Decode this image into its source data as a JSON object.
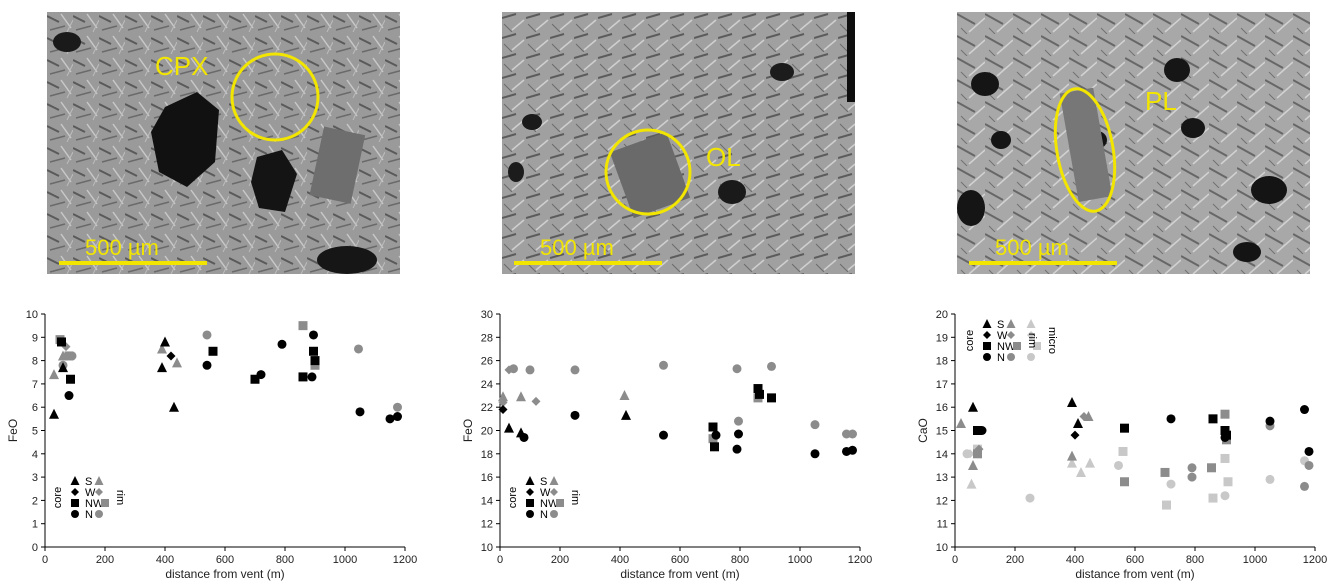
{
  "colors": {
    "core": "#000000",
    "rim": "#8c8c8c",
    "micro": "#c8c8c8",
    "yellow": "#f2e500"
  },
  "micrographs": [
    {
      "mineral_label": "CPX",
      "scale_label": "500 µm"
    },
    {
      "mineral_label": "OL",
      "scale_label": "500 µm"
    },
    {
      "mineral_label": "PL",
      "scale_label": "500 µm"
    }
  ],
  "chart_data": [
    {
      "type": "scatter",
      "xlabel": "distance from vent (m)",
      "ylabel": "FeO",
      "xlim": [
        0,
        1200
      ],
      "ylim": [
        0,
        10
      ],
      "xticks": [
        0,
        200,
        400,
        600,
        800,
        1000,
        1200
      ],
      "yticks": [
        0,
        1,
        2,
        3,
        4,
        5,
        6,
        7,
        8,
        9,
        10
      ],
      "legend": {
        "position": "bottom-left",
        "groups": [
          "core",
          "rim"
        ],
        "sites": [
          "S",
          "W",
          "NW",
          "N"
        ]
      },
      "series": [
        {
          "name": "S",
          "group": "core",
          "marker": "triangle",
          "points": [
            [
              30,
              5.7
            ],
            [
              60,
              7.7
            ],
            [
              390,
              7.7
            ],
            [
              430,
              6.0
            ],
            [
              400,
              8.8
            ]
          ]
        },
        {
          "name": "W",
          "group": "core",
          "marker": "diamond",
          "points": [
            [
              420,
              8.2
            ]
          ]
        },
        {
          "name": "NW",
          "group": "core",
          "marker": "square",
          "points": [
            [
              55,
              8.8
            ],
            [
              85,
              7.2
            ],
            [
              560,
              8.4
            ],
            [
              700,
              7.2
            ],
            [
              860,
              7.3
            ],
            [
              895,
              8.4
            ],
            [
              900,
              8.0
            ]
          ]
        },
        {
          "name": "N",
          "group": "core",
          "marker": "circle",
          "points": [
            [
              80,
              6.5
            ],
            [
              540,
              7.8
            ],
            [
              720,
              7.4
            ],
            [
              790,
              8.7
            ],
            [
              895,
              9.1
            ],
            [
              890,
              7.3
            ],
            [
              1050,
              5.8
            ],
            [
              1150,
              5.5
            ],
            [
              1175,
              5.6
            ]
          ]
        },
        {
          "name": "S",
          "group": "rim",
          "marker": "triangle",
          "points": [
            [
              30,
              7.4
            ],
            [
              60,
              8.2
            ],
            [
              390,
              8.5
            ],
            [
              440,
              7.9
            ]
          ]
        },
        {
          "name": "W",
          "group": "rim",
          "marker": "diamond",
          "points": [
            [
              70,
              8.6
            ]
          ]
        },
        {
          "name": "NW",
          "group": "rim",
          "marker": "square",
          "points": [
            [
              50,
              8.9
            ],
            [
              80,
              8.2
            ],
            [
              860,
              9.5
            ],
            [
              900,
              7.8
            ]
          ]
        },
        {
          "name": "N",
          "group": "rim",
          "marker": "circle",
          "points": [
            [
              60,
              7.8
            ],
            [
              90,
              8.2
            ],
            [
              540,
              9.1
            ],
            [
              900,
              8.0
            ],
            [
              1045,
              8.5
            ],
            [
              1175,
              6.0
            ]
          ]
        }
      ]
    },
    {
      "type": "scatter",
      "xlabel": "distance from vent (m)",
      "ylabel": "FeO",
      "xlim": [
        0,
        1200
      ],
      "ylim": [
        10,
        30
      ],
      "xticks": [
        0,
        200,
        400,
        600,
        800,
        1000,
        1200
      ],
      "yticks": [
        10,
        12,
        14,
        16,
        18,
        20,
        22,
        24,
        26,
        28,
        30
      ],
      "legend": {
        "position": "bottom-left",
        "groups": [
          "core",
          "rim"
        ],
        "sites": [
          "S",
          "W",
          "NW",
          "N"
        ]
      },
      "series": [
        {
          "name": "S",
          "group": "core",
          "marker": "triangle",
          "points": [
            [
              30,
              20.2
            ],
            [
              70,
              19.8
            ],
            [
              420,
              21.3
            ]
          ]
        },
        {
          "name": "W",
          "group": "core",
          "marker": "diamond",
          "points": [
            [
              10,
              21.8
            ]
          ]
        },
        {
          "name": "NW",
          "group": "core",
          "marker": "square",
          "points": [
            [
              710,
              20.3
            ],
            [
              715,
              18.6
            ],
            [
              860,
              23.6
            ],
            [
              865,
              23.1
            ],
            [
              905,
              22.8
            ]
          ]
        },
        {
          "name": "N",
          "group": "core",
          "marker": "circle",
          "points": [
            [
              80,
              19.4
            ],
            [
              250,
              21.3
            ],
            [
              545,
              19.6
            ],
            [
              720,
              19.6
            ],
            [
              795,
              19.7
            ],
            [
              790,
              18.4
            ],
            [
              1050,
              18.0
            ],
            [
              1155,
              18.2
            ],
            [
              1175,
              18.3
            ]
          ]
        },
        {
          "name": "S",
          "group": "rim",
          "marker": "triangle",
          "points": [
            [
              10,
              22.9
            ],
            [
              70,
              22.9
            ],
            [
              415,
              23.0
            ]
          ]
        },
        {
          "name": "W",
          "group": "rim",
          "marker": "diamond",
          "points": [
            [
              10,
              22.4
            ],
            [
              30,
              25.2
            ],
            [
              120,
              22.5
            ]
          ]
        },
        {
          "name": "NW",
          "group": "rim",
          "marker": "square",
          "points": [
            [
              710,
              19.3
            ],
            [
              860,
              22.8
            ]
          ]
        },
        {
          "name": "N",
          "group": "rim",
          "marker": "circle",
          "points": [
            [
              45,
              25.3
            ],
            [
              100,
              25.2
            ],
            [
              250,
              25.2
            ],
            [
              545,
              25.6
            ],
            [
              790,
              25.3
            ],
            [
              795,
              20.8
            ],
            [
              905,
              25.5
            ],
            [
              1050,
              20.5
            ],
            [
              1155,
              19.7
            ],
            [
              1175,
              19.7
            ]
          ]
        }
      ]
    },
    {
      "type": "scatter",
      "xlabel": "distance from vent (m)",
      "ylabel": "CaO",
      "xlim": [
        0,
        1200
      ],
      "ylim": [
        10,
        20
      ],
      "xticks": [
        0,
        200,
        400,
        600,
        800,
        1000,
        1200
      ],
      "yticks": [
        10,
        11,
        12,
        13,
        14,
        15,
        16,
        17,
        18,
        19,
        20
      ],
      "legend": {
        "position": "top-left",
        "groups": [
          "core",
          "rim",
          "micro"
        ],
        "sites": [
          "S",
          "W",
          "NW",
          "N"
        ]
      },
      "series": [
        {
          "name": "S",
          "group": "core",
          "marker": "triangle",
          "points": [
            [
              60,
              16.0
            ],
            [
              390,
              16.2
            ],
            [
              410,
              15.3
            ]
          ]
        },
        {
          "name": "W",
          "group": "core",
          "marker": "diamond",
          "points": [
            [
              400,
              14.8
            ]
          ]
        },
        {
          "name": "NW",
          "group": "core",
          "marker": "square",
          "points": [
            [
              75,
              15.0
            ],
            [
              565,
              15.1
            ],
            [
              860,
              15.5
            ],
            [
              900,
              15.0
            ],
            [
              905,
              14.8
            ]
          ]
        },
        {
          "name": "N",
          "group": "core",
          "marker": "circle",
          "points": [
            [
              90,
              15.0
            ],
            [
              720,
              15.5
            ],
            [
              900,
              14.7
            ],
            [
              1050,
              15.4
            ],
            [
              1165,
              15.9
            ],
            [
              1180,
              14.1
            ]
          ]
        },
        {
          "name": "S",
          "group": "rim",
          "marker": "triangle",
          "points": [
            [
              20,
              15.3
            ],
            [
              60,
              13.5
            ],
            [
              390,
              13.9
            ],
            [
              445,
              15.6
            ]
          ]
        },
        {
          "name": "W",
          "group": "rim",
          "marker": "diamond",
          "points": [
            [
              80,
              14.2
            ],
            [
              430,
              15.6
            ]
          ]
        },
        {
          "name": "NW",
          "group": "rim",
          "marker": "square",
          "points": [
            [
              75,
              14.0
            ],
            [
              565,
              12.8
            ],
            [
              700,
              13.2
            ],
            [
              855,
              13.4
            ],
            [
              900,
              15.7
            ],
            [
              905,
              14.6
            ]
          ]
        },
        {
          "name": "N",
          "group": "rim",
          "marker": "circle",
          "points": [
            [
              790,
              13.4
            ],
            [
              790,
              13.0
            ],
            [
              1050,
              15.2
            ],
            [
              1165,
              12.6
            ],
            [
              1180,
              13.5
            ]
          ]
        },
        {
          "name": "S",
          "group": "micro",
          "marker": "triangle",
          "points": [
            [
              55,
              12.7
            ],
            [
              390,
              13.6
            ],
            [
              420,
              13.2
            ],
            [
              450,
              13.6
            ]
          ]
        },
        {
          "name": "W",
          "group": "micro",
          "marker": "diamond",
          "points": [
            [
              50,
              14.0
            ]
          ]
        },
        {
          "name": "NW",
          "group": "micro",
          "marker": "square",
          "points": [
            [
              75,
              14.2
            ],
            [
              560,
              14.1
            ],
            [
              705,
              11.8
            ],
            [
              860,
              12.1
            ],
            [
              900,
              13.8
            ],
            [
              910,
              12.8
            ]
          ]
        },
        {
          "name": "N",
          "group": "micro",
          "marker": "circle",
          "points": [
            [
              40,
              14.0
            ],
            [
              250,
              12.1
            ],
            [
              545,
              13.5
            ],
            [
              720,
              12.7
            ],
            [
              900,
              12.2
            ],
            [
              1050,
              12.9
            ],
            [
              1165,
              13.7
            ]
          ]
        }
      ]
    }
  ]
}
